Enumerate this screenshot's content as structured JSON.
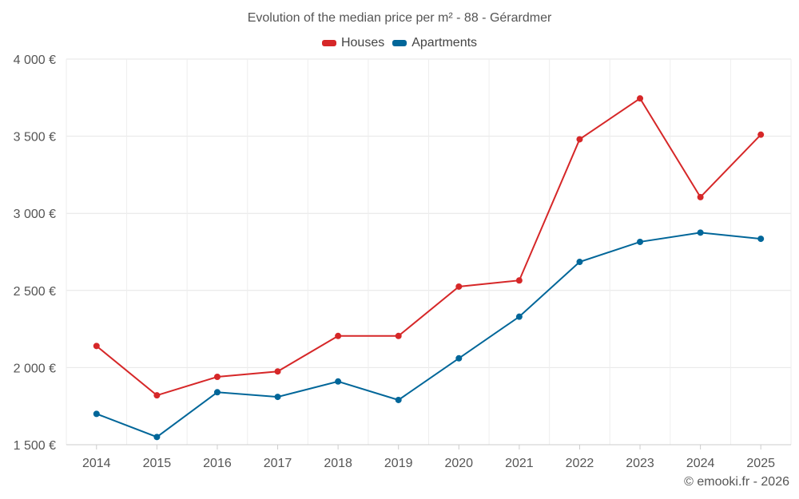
{
  "chart_data": {
    "type": "line",
    "title": "Evolution of the median price per m² - 88 - Gérardmer",
    "x": [
      "2014",
      "2015",
      "2016",
      "2017",
      "2018",
      "2019",
      "2020",
      "2021",
      "2022",
      "2023",
      "2024",
      "2025"
    ],
    "series": [
      {
        "name": "Houses",
        "color": "#d62728",
        "values": [
          2140,
          1820,
          1940,
          1975,
          2205,
          2205,
          2525,
          2565,
          3480,
          3745,
          3105,
          3510
        ]
      },
      {
        "name": "Apartments",
        "color": "#006699",
        "values": [
          1700,
          1550,
          1840,
          1810,
          1910,
          1790,
          2060,
          2330,
          2685,
          2815,
          2875,
          2835
        ]
      }
    ],
    "ylim": [
      1500,
      4000
    ],
    "yticks": [
      1500,
      2000,
      2500,
      3000,
      3500,
      4000
    ],
    "ytick_labels": [
      "1 500 €",
      "2 000 €",
      "2 500 €",
      "3 000 €",
      "3 500 €",
      "4 000 €"
    ],
    "xlabel": "",
    "ylabel": "",
    "grid": true,
    "legend_position": "top-center"
  },
  "credit": "© emooki.fr - 2026"
}
